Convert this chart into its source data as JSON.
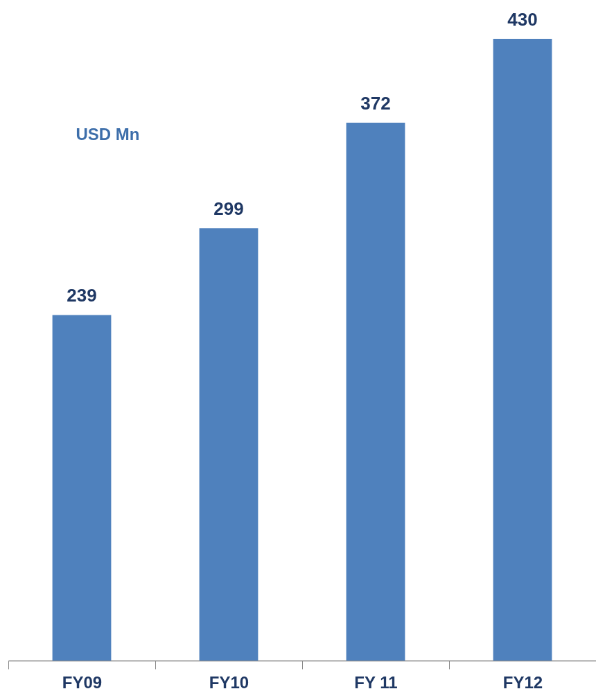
{
  "chart_data": {
    "type": "bar",
    "ylabel": "USD Mn",
    "categories": [
      "FY09",
      "FY10",
      "FY 11",
      "FY12"
    ],
    "values": [
      239,
      299,
      372,
      430
    ],
    "color": "#4f81bd",
    "data_labels": true,
    "grid": false
  }
}
